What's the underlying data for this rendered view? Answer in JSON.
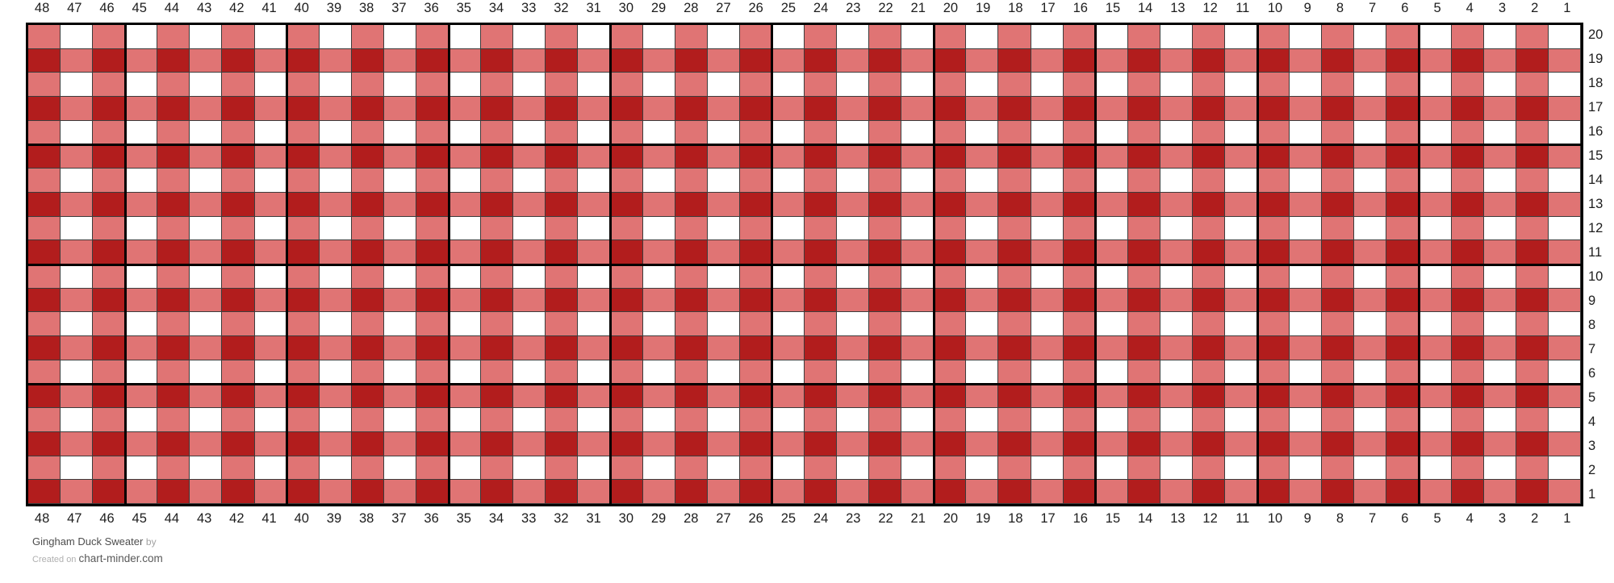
{
  "footer": {
    "title": "Gingham Duck Sweater",
    "by_label": "by",
    "created_prefix": "Created on",
    "site": "chart-minder.com"
  },
  "chart_data": {
    "type": "heatmap",
    "title": "Gingham Duck Sweater",
    "description": "Knitting colorwork chart, 48 stitches wide by 20 rows tall, red gingham check pattern",
    "columns": 48,
    "rows": 20,
    "column_labels_left_to_right": [
      "48",
      "47",
      "46",
      "45",
      "44",
      "43",
      "42",
      "41",
      "40",
      "39",
      "38",
      "37",
      "36",
      "35",
      "34",
      "33",
      "32",
      "31",
      "30",
      "29",
      "28",
      "27",
      "26",
      "25",
      "24",
      "23",
      "22",
      "21",
      "20",
      "19",
      "18",
      "17",
      "16",
      "15",
      "14",
      "13",
      "12",
      "11",
      "10",
      "9",
      "8",
      "7",
      "6",
      "5",
      "4",
      "3",
      "2",
      "1"
    ],
    "row_labels_top_to_bottom": [
      "20",
      "19",
      "18",
      "17",
      "16",
      "15",
      "14",
      "13",
      "12",
      "11",
      "10",
      "9",
      "8",
      "7",
      "6",
      "5",
      "4",
      "3",
      "2",
      "1"
    ],
    "legend": {
      "D": "dark red stitch",
      "L": "light red stitch",
      "W": "white stitch"
    },
    "palette": {
      "D": "#b21d1d",
      "L": "#e07474",
      "W": "#ffffff"
    },
    "grid": [
      "LWLWLWLWLWLWLWLWLWLWLWLWLWLWLWLWLWLWLWLWLWLWLWLW",
      "DLDLDLDLDLDLDLDLDLDLDLDLDLDLDLDLDLDLDLDLDLDLDLDL",
      "LWLWLWLWLWLWLWLWLWLWLWLWLWLWLWLWLWLWLWLWLWLWLWLW",
      "DLDLDLDLDLDLDLDLDLDLDLDLDLDLDLDLDLDLDLDLDLDLDLDL",
      "LWLWLWLWLWLWLWLWLWLWLWLWLWLWLWLWLWLWLWLWLWLWLWLW",
      "DLDLDLDLDLDLDLDLDLDLDLDLDLDLDLDLDLDLDLDLDLDLDLDL",
      "LWLWLWLWLWLWLWLWLWLWLWLWLWLWLWLWLWLWLWLWLWLWLWLW",
      "DLDLDLDLDLDLDLDLDLDLDLDLDLDLDLDLDLDLDLDLDLDLDLDL",
      "LWLWLWLWLWLWLWLWLWLWLWLWLWLWLWLWLWLWLWLWLWLWLWLW",
      "DLDLDLDLDLDLDLDLDLDLDLDLDLDLDLDLDLDLDLDLDLDLDLDL",
      "LWLWLWLWLWLWLWLWLWLWLWLWLWLWLWLWLWLWLWLWLWLWLWLW",
      "DLDLDLDLDLDLDLDLDLDLDLDLDLDLDLDLDLDLDLDLDLDLDLDL",
      "LWLWLWLWLWLWLWLWLWLWLWLWLWLWLWLWLWLWLWLWLWLWLWLW",
      "DLDLDLDLDLDLDLDLDLDLDLDLDLDLDLDLDLDLDLDLDLDLDLDL",
      "LWLWLWLWLWLWLWLWLWLWLWLWLWLWLWLWLWLWLWLWLWLWLWLW",
      "DLDLDLDLDLDLDLDLDLDLDLDLDLDLDLDLDLDLDLDLDLDLDLDL",
      "LWLWLWLWLWLWLWLWLWLWLWLWLWLWLWLWLWLWLWLWLWLWLWLW",
      "DLDLDLDLDLDLDLDLDLDLDLDLDLDLDLDLDLDLDLDLDLDLDLDL",
      "LWLWLWLWLWLWLWLWLWLWLWLWLWLWLWLWLWLWLWLWLWLWLWLW",
      "DLDLDLDLDLDLDLDLDLDLDLDLDLDLDLDLDLDLDLDLDLDLDLDL"
    ],
    "bold_gridline_every": 5,
    "bold_gridline_origin": "bottom-right",
    "line_colors": {
      "thin": "#3c3c3c",
      "bold": "#000000",
      "border": "#000000"
    },
    "label_color": "#1d1d1d"
  }
}
